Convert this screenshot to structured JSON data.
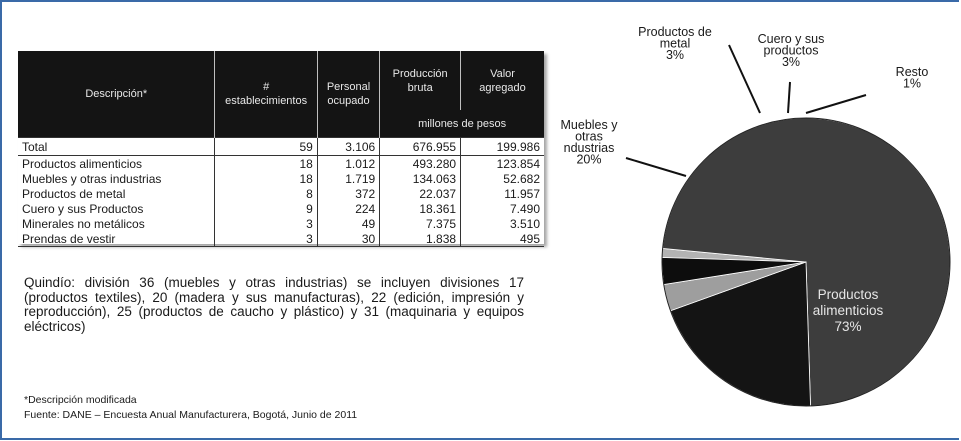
{
  "table": {
    "headers": {
      "descripcion": "Descripción*",
      "establecimientos_1": "#",
      "establecimientos_2": "establecimientos",
      "personal_1": "Personal",
      "personal_2": "ocupado",
      "produccion_1": "Producción",
      "produccion_2": "bruta",
      "valor_1": "Valor",
      "valor_2": "agregado",
      "unit": "millones de pesos"
    },
    "rows": [
      {
        "desc": "Total",
        "est": "59",
        "pers": "3.106",
        "prod": "676.955",
        "valor": "199.986"
      },
      {
        "desc": "Productos alimenticios",
        "est": "18",
        "pers": "1.012",
        "prod": "493.280",
        "valor": "123.854"
      },
      {
        "desc": "Muebles y otras industrias",
        "est": "18",
        "pers": "1.719",
        "prod": "134.063",
        "valor": "52.682"
      },
      {
        "desc": "Productos de metal",
        "est": "8",
        "pers": "372",
        "prod": "22.037",
        "valor": "11.957"
      },
      {
        "desc": "Cuero y sus Productos",
        "est": "9",
        "pers": "224",
        "prod": "18.361",
        "valor": "7.490"
      },
      {
        "desc": "Minerales no metálicos",
        "est": "3",
        "pers": "49",
        "prod": "7.375",
        "valor": "3.510"
      },
      {
        "desc": "Prendas de vestir",
        "est": "3",
        "pers": "30",
        "prod": "1.838",
        "valor": "495"
      }
    ]
  },
  "note": "Quindío: división 36 (muebles y otras industrias) se incluyen divisiones 17 (productos textiles), 20 (madera y sus manufacturas), 22 (edición, impresión y reproducción), 25 (productos de caucho y plástico) y 31 (maquinaria y equipos eléctricos)",
  "source": {
    "line1": "*Descripción modificada",
    "line2": "Fuente: DANE – Encuesta Anual Manufacturera, Bogotá, Junio de 2011"
  },
  "chart_data": {
    "type": "pie",
    "slices": [
      {
        "name": "Resto",
        "label_lines": [
          "Resto",
          "1%"
        ],
        "value": 1,
        "color": "#b3b3b3"
      },
      {
        "name": "Productos alimenticios",
        "label_lines": [
          "Productos",
          "alimenticios",
          "73%"
        ],
        "value": 73,
        "color": "#3d3d3d"
      },
      {
        "name": "Muebles y otras ndustrias",
        "label_lines": [
          "Muebles y",
          "otras",
          "ndustrias",
          "20%"
        ],
        "value": 20,
        "color": "#141414"
      },
      {
        "name": "Productos de metal",
        "label_lines": [
          "Productos de",
          "metal",
          "3%"
        ],
        "value": 3,
        "color": "#9e9e9e"
      },
      {
        "name": "Cuero y sus productos",
        "label_lines": [
          "Cuero y sus",
          "productos",
          "3%"
        ],
        "value": 3,
        "color": "#0d0d0d"
      }
    ]
  }
}
